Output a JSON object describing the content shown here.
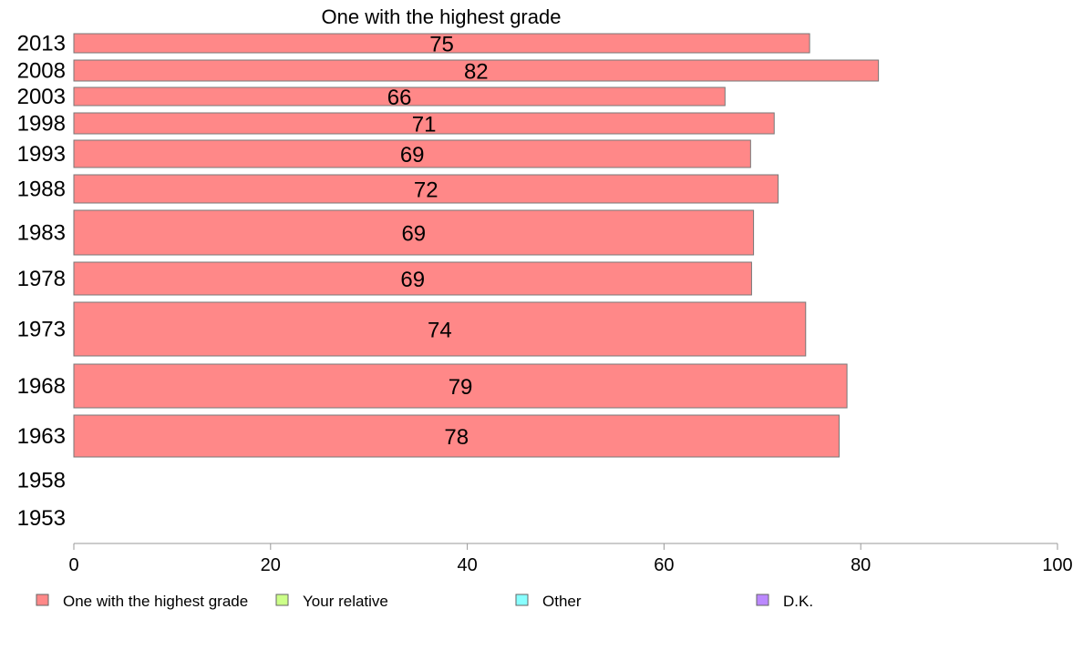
{
  "chart_data": {
    "type": "bar",
    "orientation": "horizontal",
    "title": "One with the highest grade",
    "xlabel": "",
    "ylabel": "",
    "xlim": [
      0,
      100
    ],
    "x_ticks": [
      "0",
      "20",
      "40",
      "60",
      "80",
      "100"
    ],
    "categories": [
      "2013",
      "2008",
      "2003",
      "1998",
      "1993",
      "1988",
      "1983",
      "1978",
      "1973",
      "1968",
      "1963",
      "1958",
      "1953"
    ],
    "series": [
      {
        "name": "One with the highest grade",
        "color": "#ff8888",
        "values": [
          74.8,
          81.8,
          66.2,
          71.2,
          68.8,
          71.6,
          69.1,
          68.9,
          74.4,
          78.6,
          77.8,
          null,
          null
        ],
        "labels": [
          "75",
          "82",
          "66",
          "71",
          "69",
          "72",
          "69",
          "69",
          "74",
          "79",
          "78",
          "",
          ""
        ]
      }
    ],
    "legend": {
      "position": "bottom",
      "items": [
        {
          "label": "One with the highest grade",
          "color": "#ff8888"
        },
        {
          "label": "Your relative",
          "color": "#ccff88"
        },
        {
          "label": "Other",
          "color": "#88ffff"
        },
        {
          "label": "D.K.",
          "color": "#bb88ff"
        }
      ]
    },
    "grid": false
  }
}
